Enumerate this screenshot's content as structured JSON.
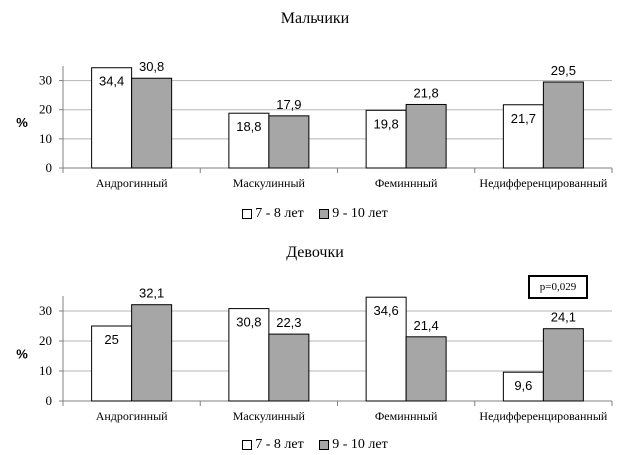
{
  "chart_data": [
    {
      "type": "bar",
      "title": "Мальчики",
      "ylabel": "%",
      "xlabel": "",
      "ylim": [
        0,
        35
      ],
      "yticks": [
        0,
        10,
        20,
        30
      ],
      "grid": true,
      "legend_position": "bottom",
      "categories": [
        "Андрогинный",
        "Маскулинный",
        "Феминнный",
        "Недифференцированный"
      ],
      "series": [
        {
          "name": "7 - 8 лет",
          "color": "#ffffff",
          "values": [
            34.4,
            18.8,
            19.8,
            21.7
          ],
          "labels": [
            "34,4",
            "18,8",
            "19,8",
            "21,7"
          ]
        },
        {
          "name": "9 - 10 лет",
          "color": "#a6a6a6",
          "values": [
            30.8,
            17.9,
            21.8,
            29.5
          ],
          "labels": [
            "30,8",
            "17,9",
            "21,8",
            "29,5"
          ]
        }
      ],
      "annotation": ""
    },
    {
      "type": "bar",
      "title": "Девочки",
      "ylabel": "%",
      "xlabel": "",
      "ylim": [
        0,
        35
      ],
      "yticks": [
        0,
        10,
        20,
        30
      ],
      "grid": true,
      "legend_position": "bottom",
      "categories": [
        "Андрогинный",
        "Маскулинный",
        "Феминнный",
        "Недифференцированный"
      ],
      "series": [
        {
          "name": "7 - 8 лет",
          "color": "#ffffff",
          "values": [
            25,
            30.8,
            34.6,
            9.6
          ],
          "labels": [
            "25",
            "30,8",
            "34,6",
            "9,6"
          ]
        },
        {
          "name": "9 - 10 лет",
          "color": "#a6a6a6",
          "values": [
            32.1,
            22.3,
            21.4,
            24.1
          ],
          "labels": [
            "32,1",
            "22,3",
            "21,4",
            "24,1"
          ]
        }
      ],
      "annotation": "p=0,029"
    }
  ]
}
